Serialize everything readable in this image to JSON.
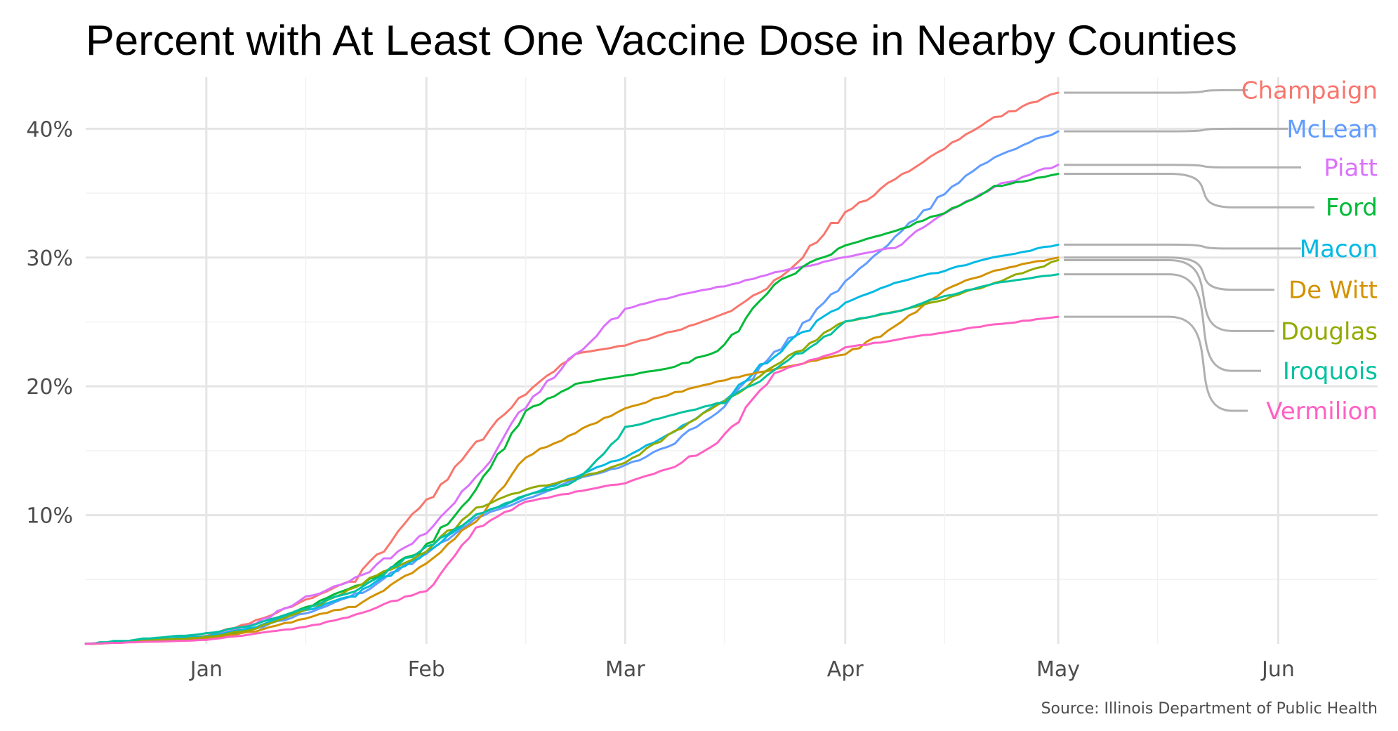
{
  "chart_data": {
    "type": "line",
    "title": "Percent with At Least One Vaccine Dose in Nearby Counties",
    "source": "Source: Illinois Department of Public Health",
    "xlabel": "",
    "ylabel": "",
    "x_ticks": [
      "Jan",
      "Feb",
      "Mar",
      "Apr",
      "May",
      "Jun"
    ],
    "y_ticks": [
      "10%",
      "20%",
      "30%",
      "40%"
    ],
    "ylim": [
      0,
      44
    ],
    "xlim": [
      "2020-12-15",
      "2021-06-15"
    ],
    "grid": true,
    "legend": "direct-labels-right",
    "x_unit": "date",
    "x": [
      "2020-12-15",
      "2021-01-01",
      "2021-01-08",
      "2021-01-15",
      "2021-01-22",
      "2021-02-01",
      "2021-02-08",
      "2021-02-15",
      "2021-02-22",
      "2021-03-01",
      "2021-03-08",
      "2021-03-15",
      "2021-03-22",
      "2021-04-01",
      "2021-04-08",
      "2021-04-15",
      "2021-04-22",
      "2021-05-01"
    ],
    "series": [
      {
        "name": "Champaign",
        "color": "#F8766D",
        "values": [
          0,
          0.6,
          1.8,
          3.4,
          5.0,
          11.0,
          15.5,
          19.5,
          22.5,
          23.2,
          24.3,
          25.6,
          28.0,
          33.5,
          36.0,
          38.5,
          40.8,
          42.8
        ]
      },
      {
        "name": "McLean",
        "color": "#619CFF",
        "values": [
          0,
          0.4,
          1.2,
          2.4,
          3.8,
          7.0,
          9.8,
          11.2,
          12.8,
          13.8,
          15.6,
          18.5,
          22.5,
          28.0,
          31.5,
          35.0,
          37.8,
          39.8
        ]
      },
      {
        "name": "Piatt",
        "color": "#DB72FB",
        "values": [
          0,
          0.5,
          1.6,
          3.6,
          5.0,
          8.6,
          12.8,
          18.5,
          22.5,
          26.0,
          27.0,
          27.8,
          28.8,
          30.0,
          30.8,
          33.5,
          35.5,
          37.2
        ]
      },
      {
        "name": "Ford",
        "color": "#00BA38",
        "values": [
          0,
          0.5,
          1.2,
          2.8,
          4.5,
          7.5,
          12.0,
          18.0,
          20.2,
          20.8,
          21.5,
          23.0,
          28.0,
          31.0,
          32.0,
          33.5,
          35.5,
          36.5
        ]
      },
      {
        "name": "Macon",
        "color": "#00B9E3",
        "values": [
          0,
          0.6,
          1.3,
          2.6,
          3.8,
          7.0,
          10.0,
          11.5,
          13.0,
          14.5,
          16.5,
          19.0,
          22.5,
          26.5,
          28.0,
          29.0,
          30.0,
          31.0
        ]
      },
      {
        "name": "De Witt",
        "color": "#D39200",
        "values": [
          0,
          0.4,
          1.0,
          2.0,
          3.0,
          6.2,
          9.6,
          14.5,
          16.4,
          18.3,
          19.5,
          20.5,
          21.3,
          22.5,
          24.5,
          27.5,
          29.0,
          30.0
        ]
      },
      {
        "name": "Douglas",
        "color": "#93AA00",
        "values": [
          0,
          0.5,
          1.2,
          2.6,
          4.4,
          7.2,
          10.5,
          12.0,
          12.8,
          14.0,
          16.5,
          18.8,
          21.5,
          25.0,
          25.8,
          26.8,
          28.0,
          29.8
        ]
      },
      {
        "name": "Iroquois",
        "color": "#00C19F",
        "values": [
          0,
          0.8,
          1.5,
          2.8,
          4.2,
          7.5,
          10.0,
          11.5,
          12.5,
          16.8,
          17.8,
          18.8,
          21.2,
          25.0,
          25.8,
          27.0,
          28.0,
          28.7
        ]
      },
      {
        "name": "Vermilion",
        "color": "#FF61C3",
        "values": [
          0,
          0.3,
          0.8,
          1.3,
          2.2,
          4.2,
          9.0,
          11.0,
          11.8,
          12.5,
          13.8,
          16.0,
          21.0,
          23.0,
          23.6,
          24.2,
          24.8,
          25.4
        ]
      }
    ],
    "label_values": [
      43.0,
      40.0,
      37.0,
      33.9,
      30.7,
      27.5,
      24.3,
      21.2,
      18.1
    ]
  }
}
